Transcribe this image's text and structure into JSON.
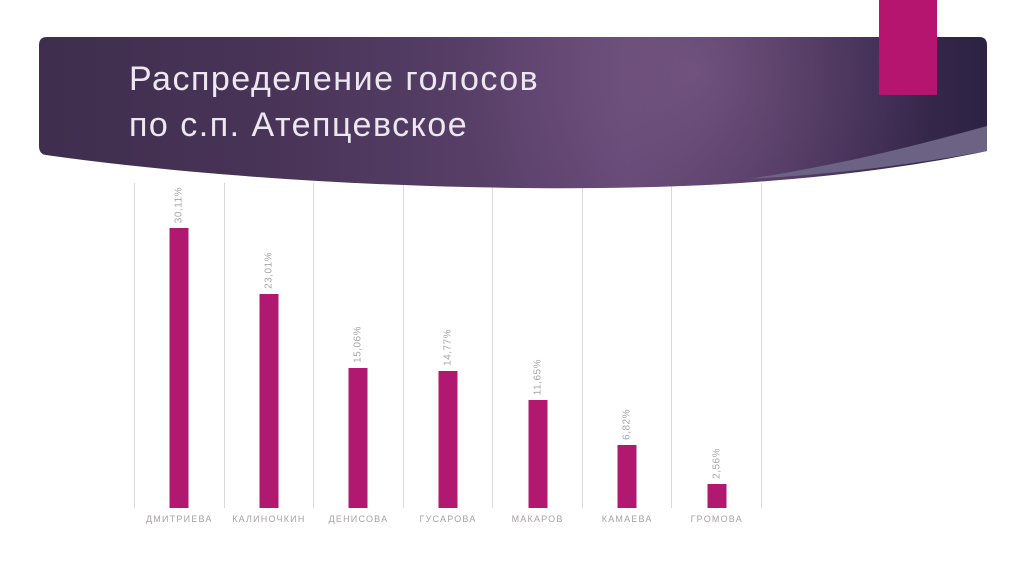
{
  "slide": {
    "title_line1": "Распределение голосов",
    "title_line2": "по с.п. Атепцевское"
  },
  "chart_data": {
    "type": "bar",
    "title": "Распределение голосов по с.п. Атепцевское",
    "categories": [
      "ДМИТРИЕВА",
      "КАЛИНОЧКИН",
      "ДЕНИСОВА",
      "ГУСАРОВА",
      "МАКАРОВ",
      "КАМАЕВА",
      "ГРОМОВА"
    ],
    "values": [
      30.11,
      23.01,
      15.06,
      14.77,
      11.65,
      6.82,
      2.56
    ],
    "value_labels": [
      "30,11%",
      "23,01%",
      "15,06%",
      "14,77%",
      "11,65%",
      "6,82%",
      "2,56%"
    ],
    "xlabel": "",
    "ylabel": "",
    "ylim": [
      0,
      35
    ],
    "grid": "vertical-only",
    "legend": "none",
    "bar_color": "#b1186f",
    "value_label_rotation": -90
  },
  "colors": {
    "accent_magenta": "#b5156e",
    "bar_magenta": "#b1186f",
    "header_dark_right": "#2d2243",
    "header_dark_left": "#3f2e4e",
    "header_mid": "#5e4370",
    "swoosh_gray": "#6c6384",
    "gridline": "#dadada",
    "label_gray": "#a6a6a6",
    "title_text": "#ece7f0"
  }
}
